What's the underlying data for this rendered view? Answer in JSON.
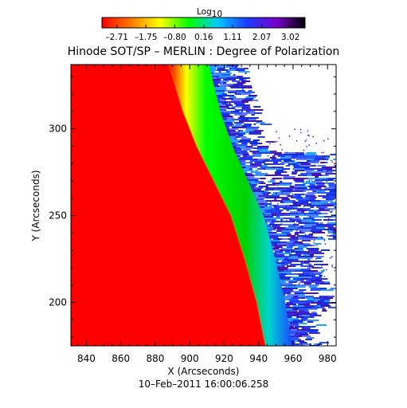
{
  "chart_data": {
    "type": "heatmap",
    "title": "Hinode SOT/SP – MERLIN : Degree of Polarization",
    "xlabel": "X (Arcseconds)",
    "ylabel": "Y (Arcseconds)",
    "footer": "10–Feb–2011 16:00:06.258",
    "xlim": [
      831,
      985
    ],
    "ylim": [
      175,
      337
    ],
    "xticks": [
      840,
      860,
      880,
      900,
      920,
      940,
      960,
      980
    ],
    "yticks": [
      200,
      250,
      300
    ],
    "colorbar": {
      "label": "Log",
      "label_sub": "10",
      "min": -3.2,
      "max": 3.5,
      "ticks": [
        -2.71,
        -1.75,
        -0.8,
        0.16,
        1.11,
        2.07,
        3.02
      ],
      "tick_labels": [
        "–2.71",
        "–1.75",
        "–0.80",
        "0.16",
        "1.11",
        "2.07",
        "3.02"
      ],
      "colors": [
        "#ff0000",
        "#ff7a00",
        "#ffff00",
        "#00ff00",
        "#00c8ff",
        "#1a3cff",
        "#7a00cc",
        "#000000"
      ]
    },
    "limb": [
      [
        888,
        337
      ],
      [
        896,
        310
      ],
      [
        904,
        290
      ],
      [
        914,
        270
      ],
      [
        924,
        250
      ],
      [
        932,
        225
      ],
      [
        939,
        200
      ],
      [
        944,
        175
      ]
    ],
    "regions": [
      {
        "name": "low",
        "value": -2.71,
        "color": "#ff0000"
      },
      {
        "name": "transition",
        "value": 0.16,
        "color": "#00ff00"
      },
      {
        "name": "off-limb",
        "value": 2.07,
        "color": "#1a3cff"
      }
    ]
  }
}
